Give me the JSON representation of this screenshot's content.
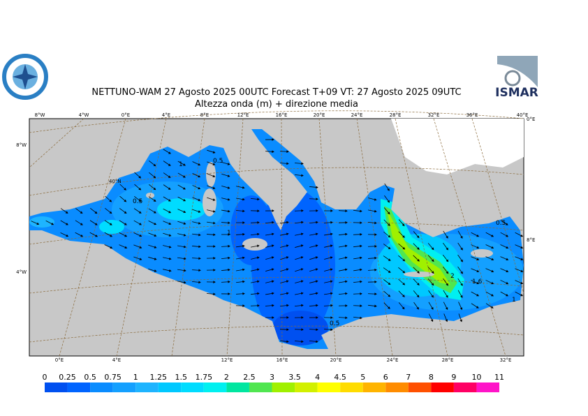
{
  "title": "NETTUNO-WAM  27   Agosto  2025 00UTC Forecast T+09 VT: 27   Agosto  2025 09UTC",
  "subtitle": "Altezza onda (m) + direzione media",
  "logo_text": "ISMAR",
  "top_lon_labels": [
    "8°W",
    "4°W",
    "0°E",
    "4°E",
    "8°E",
    "12°E",
    "16°E",
    "20°E",
    "24°E",
    "28°E",
    "32°E",
    "36°E",
    "40°E"
  ],
  "bottom_lon_labels": [
    "0°E",
    "4°E",
    "12°E",
    "16°E",
    "20°E",
    "24°E",
    "28°E",
    "32°E"
  ],
  "left_labels": [
    "8°W",
    "4°W"
  ],
  "right_labels": [
    "0°E",
    "8°E"
  ],
  "inner_labels": [
    "40°N"
  ],
  "contour_labels": [
    "1",
    "0.5",
    "0.5",
    "1",
    "0.5",
    "2",
    "1.6",
    "0.5",
    "1",
    "0.5"
  ],
  "colorbar": {
    "ticks": [
      0,
      0.25,
      0.5,
      0.75,
      1,
      1.25,
      1.5,
      1.75,
      2,
      2.5,
      3,
      3.5,
      4,
      4.5,
      5,
      6,
      7,
      8,
      9,
      10,
      11
    ],
    "colors": [
      "#0050f0",
      "#0064ff",
      "#0a8cff",
      "#14a0ff",
      "#1eb4ff",
      "#00c8ff",
      "#00dcff",
      "#00f0f0",
      "#00e6a0",
      "#50e650",
      "#a0f000",
      "#d2f000",
      "#ffff00",
      "#ffdc00",
      "#ffb400",
      "#ff8c00",
      "#ff5000",
      "#ff0000",
      "#ff0064",
      "#ff14c8"
    ]
  }
}
